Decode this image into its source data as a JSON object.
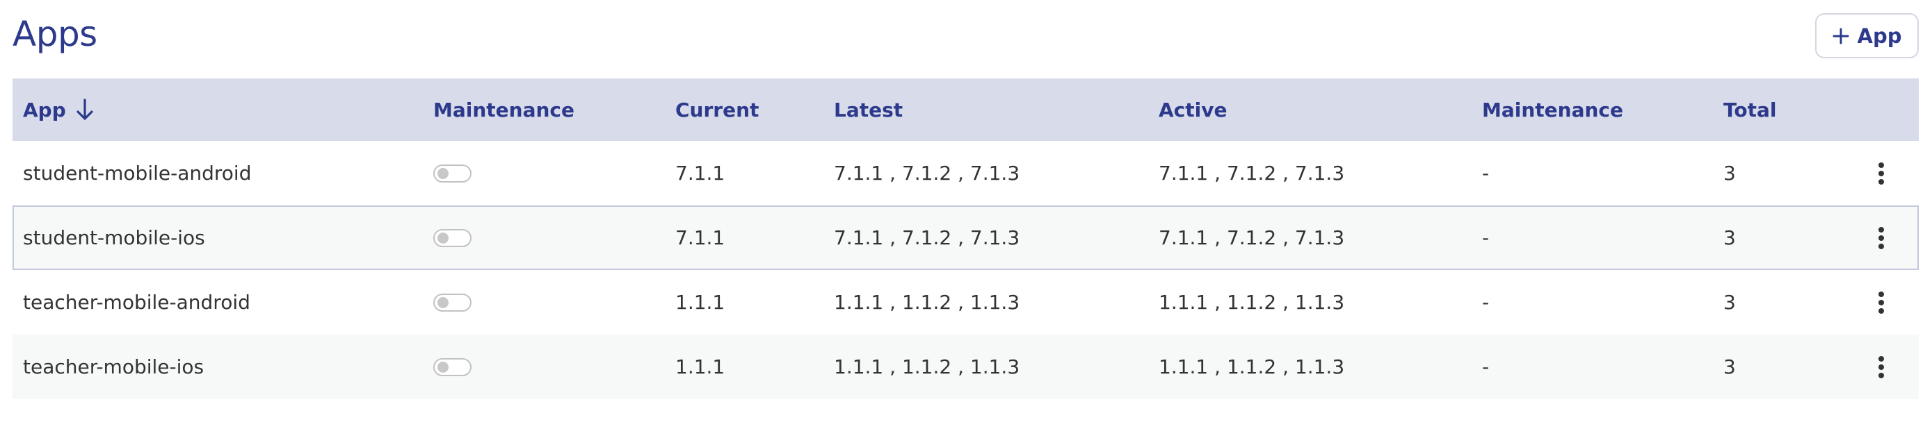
{
  "page": {
    "title": "Apps",
    "add_button_label": "App"
  },
  "colors": {
    "accent": "#2d3a8c",
    "header_bg": "#d8dbea",
    "row_alt_bg": "#f7f8f8",
    "toggle_off": "#c2c2c2"
  },
  "icons": {
    "add": "plus-icon",
    "sort": "arrow-down-icon",
    "row_menu": "kebab-menu-icon"
  },
  "table": {
    "columns": [
      "App",
      "Maintenance",
      "Current",
      "Latest",
      "Active",
      "Maintenance",
      "Total"
    ],
    "sort_column": "App",
    "sort_direction": "descending",
    "rows": [
      {
        "app": "student-mobile-android",
        "maintenance_enabled": false,
        "current": "7.1.1",
        "latest": "7.1.1 , 7.1.2 , 7.1.3",
        "active": "7.1.1 , 7.1.2 , 7.1.3",
        "maintenance_versions": "-",
        "total": "3"
      },
      {
        "app": "student-mobile-ios",
        "maintenance_enabled": false,
        "current": "7.1.1",
        "latest": "7.1.1 , 7.1.2 , 7.1.3",
        "active": "7.1.1 , 7.1.2 , 7.1.3",
        "maintenance_versions": "-",
        "total": "3"
      },
      {
        "app": "teacher-mobile-android",
        "maintenance_enabled": false,
        "current": "1.1.1",
        "latest": "1.1.1 , 1.1.2 , 1.1.3",
        "active": "1.1.1 , 1.1.2 , 1.1.3",
        "maintenance_versions": "-",
        "total": "3"
      },
      {
        "app": "teacher-mobile-ios",
        "maintenance_enabled": false,
        "current": "1.1.1",
        "latest": "1.1.1 , 1.1.2 , 1.1.3",
        "active": "1.1.1 , 1.1.2 , 1.1.3",
        "maintenance_versions": "-",
        "total": "3"
      }
    ]
  }
}
